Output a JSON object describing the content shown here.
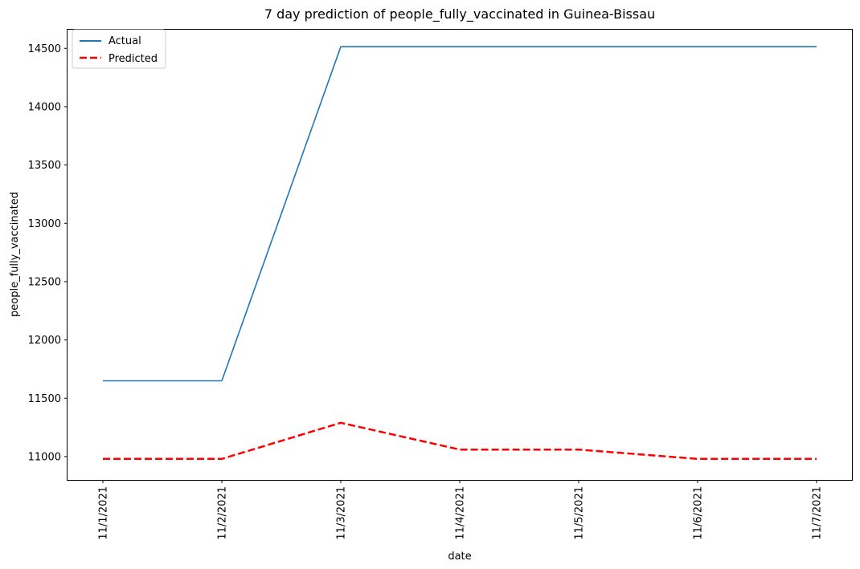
{
  "chart_data": {
    "type": "line",
    "title": "7 day prediction of people_fully_vaccinated in Guinea-Bissau",
    "xlabel": "date",
    "ylabel": "people_fully_vaccinated",
    "categories": [
      "11/1/2021",
      "11/2/2021",
      "11/3/2021",
      "11/4/2021",
      "11/5/2021",
      "11/6/2021",
      "11/7/2021"
    ],
    "yticks": [
      11000,
      11500,
      12000,
      12500,
      13000,
      13500,
      14000,
      14500
    ],
    "ylim": [
      10800,
      14660
    ],
    "grid": false,
    "legend_position": "top-left",
    "series": [
      {
        "name": "Actual",
        "values": [
          11650,
          11650,
          14514,
          14514,
          14514,
          14514,
          14514
        ],
        "color": "#1f77b4",
        "style": "solid"
      },
      {
        "name": "Predicted",
        "values": [
          10980,
          10980,
          11290,
          11060,
          11060,
          10980,
          10980
        ],
        "color": "#ff0000",
        "style": "dashed"
      }
    ]
  }
}
